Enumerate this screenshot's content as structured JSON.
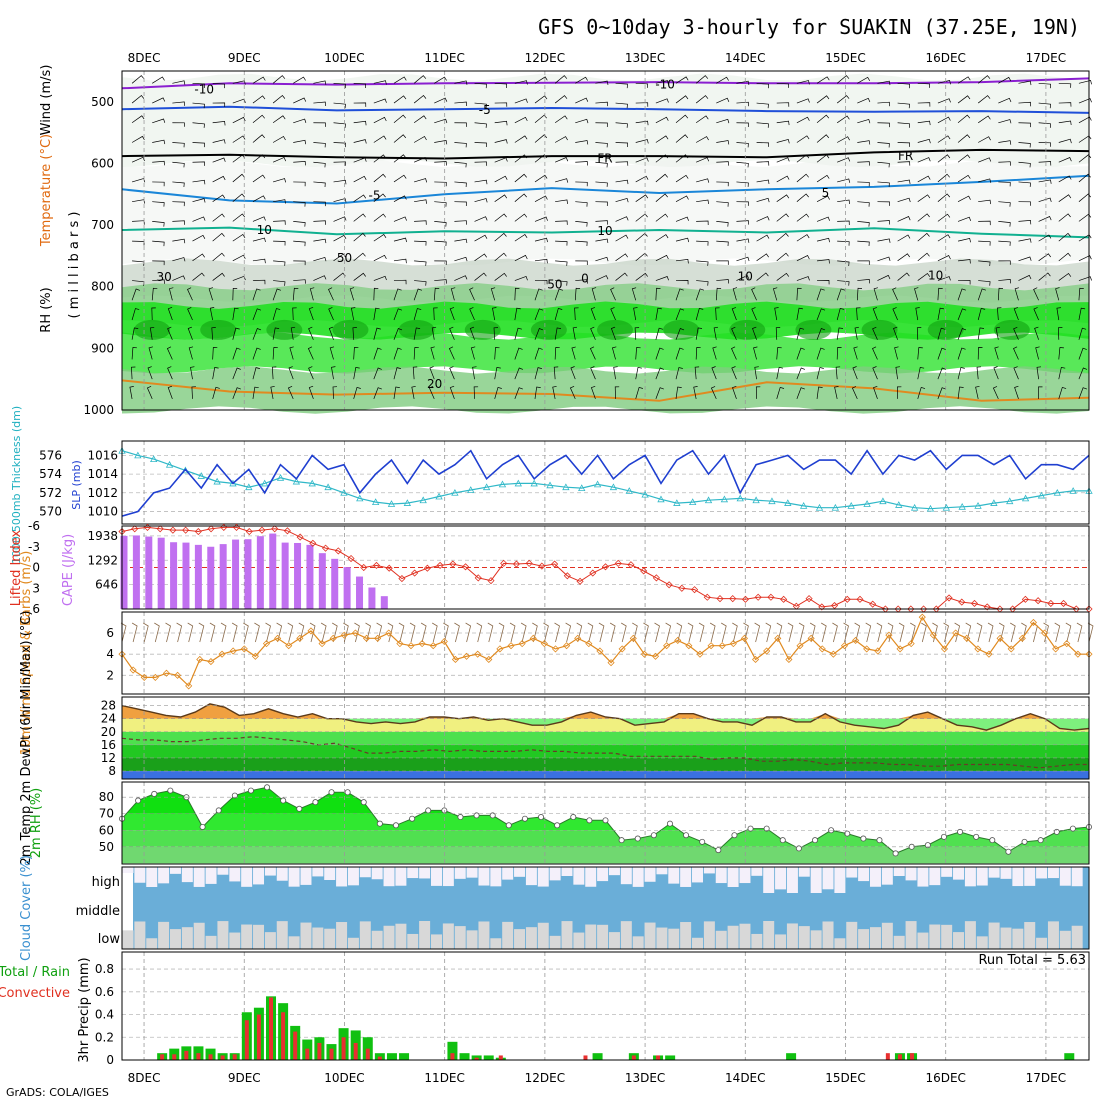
{
  "chart_data": {
    "type": "meteogram",
    "title": "GFS 0~10day 3-hourly for SUAKIN (37.25E, 19N)",
    "credit": "GrADS: COLA/IGES",
    "dates": [
      "8DEC",
      "9DEC",
      "10DEC",
      "11DEC",
      "12DEC",
      "13DEC",
      "14DEC",
      "15DEC",
      "16DEC",
      "17DEC"
    ],
    "t_start": -0.22,
    "t_end": 9.43,
    "upper": {
      "ylabel_wind": "Wind (m/s)",
      "ylabel_temp": "Temperature (°C)",
      "ylabel_rh": "RH (%)",
      "ylabel_units": "( m i l l i b a r s )",
      "pressure_ticks": [
        500,
        600,
        700,
        800,
        900,
        1000
      ],
      "ylim": [
        450,
        1000
      ],
      "contour_labels": [
        "-10",
        "-10",
        "-5",
        "FR",
        "FR",
        "-5",
        "5",
        "10",
        "10",
        "0",
        "20",
        "30",
        "50",
        "50",
        "10",
        "10"
      ],
      "isotherms": [
        {
          "label": "-10",
          "color": "#8a1fd0",
          "p": [
            478,
            470,
            472,
            470,
            469,
            468,
            470,
            470,
            468,
            462
          ]
        },
        {
          "label": "-5",
          "color": "#1f4fd8",
          "p": [
            512,
            508,
            514,
            512,
            510,
            512,
            515,
            516,
            515,
            518
          ]
        },
        {
          "label": "FR",
          "color": "#000000",
          "p": [
            588,
            586,
            590,
            592,
            588,
            588,
            590,
            582,
            578,
            580
          ]
        },
        {
          "label": "5",
          "color": "#1a86d8",
          "p": [
            642,
            660,
            665,
            650,
            640,
            648,
            642,
            638,
            630,
            620
          ]
        },
        {
          "label": "10",
          "color": "#10b090",
          "p": [
            708,
            704,
            715,
            710,
            712,
            708,
            712,
            705,
            714,
            720
          ]
        },
        {
          "label": "20",
          "color": "#e08a20",
          "p": [
            952,
            970,
            975,
            972,
            974,
            985,
            955,
            965,
            985,
            980
          ]
        }
      ]
    },
    "slp_thickness": {
      "ylabel_slp": "SLP (mb)",
      "ylabel_thick": "1000-500mb Thickness (dm)",
      "slp_ticks": [
        1010,
        1012,
        1014,
        1016
      ],
      "thick_ticks": [
        570,
        572,
        574,
        576
      ],
      "slp": [
        1009.5,
        1010,
        1012,
        1012.5,
        1014.5,
        1012.5,
        1015,
        1013,
        1014.5,
        1012,
        1015,
        1013.5,
        1016,
        1014.5,
        1015,
        1012,
        1014,
        1015.5,
        1013,
        1015.5,
        1014,
        1015,
        1016.5,
        1013.5,
        1015,
        1016,
        1013.5,
        1015,
        1016,
        1014,
        1016,
        1013.5,
        1015,
        1016,
        1013,
        1015.5,
        1016.5,
        1014,
        1016,
        1012,
        1015,
        1015.5,
        1016,
        1014.5,
        1015.5,
        1015.5,
        1014,
        1016.5,
        1014,
        1016,
        1015.5,
        1016.5,
        1014.5,
        1016,
        1016,
        1015,
        1016,
        1013.5,
        1015,
        1015,
        1014.5,
        1016
      ],
      "thickness": [
        576.5,
        576,
        575.6,
        575,
        574.4,
        573.8,
        573.2,
        573,
        572.6,
        573,
        573.6,
        573.2,
        573,
        572.6,
        572,
        571.4,
        571,
        570.8,
        570.9,
        571.2,
        571.6,
        572,
        572.3,
        572.6,
        572.9,
        573,
        573,
        572.8,
        572.6,
        572.5,
        572.9,
        572.6,
        572.2,
        571.8,
        571.3,
        570.9,
        571,
        571.2,
        571.3,
        571.4,
        571.2,
        571.1,
        570.9,
        570.6,
        570.4,
        570.4,
        570.6,
        570.8,
        571.1,
        570.7,
        570.4,
        570.3,
        570.4,
        570.5,
        570.6,
        570.9,
        571.1,
        571.4,
        571.7,
        572,
        572.2,
        572.2
      ]
    },
    "cape_li": {
      "ylabel_li": "Lifted Index",
      "ylabel_cape": "CAPE (J/kg)",
      "li_ticks": [
        "-6",
        "-3",
        "0",
        "3",
        "6"
      ],
      "cape_ticks": [
        "646",
        "1292",
        "1938"
      ],
      "cape": [
        1938,
        1950,
        1920,
        1890,
        1770,
        1760,
        1700,
        1650,
        1720,
        1840,
        1850,
        1930,
        2000,
        1760,
        1750,
        1700,
        1480,
        1330,
        1110,
        860,
        570,
        340
      ],
      "lifted_index": [
        -5.2,
        -5.6,
        -5.8,
        -5.6,
        -5.4,
        -5.4,
        -5.2,
        -5.6,
        -5.8,
        -5.8,
        -5.2,
        -5.4,
        -5.6,
        -5.3,
        -4.4,
        -3.5,
        -2.8,
        -2.4,
        -1.3,
        0,
        -0.3,
        0.1,
        1.6,
        0.8,
        0.1,
        -0.3,
        -0.5,
        -0.1,
        1.5,
        1.9,
        -0.6,
        -0.5,
        -0.6,
        -0.2,
        -0.5,
        1.2,
        2,
        0.8,
        -0.1,
        -0.6,
        -0.4,
        0.5,
        1.5,
        2.5,
        3,
        3.2,
        4.3,
        4.5,
        4.5,
        4.6,
        4.3,
        4.3,
        4.6,
        5.6,
        4.5,
        5.7,
        5.5,
        4.6,
        4.6,
        5.3,
        6,
        6,
        6,
        6,
        6,
        4.4,
        5,
        5.2,
        5.7,
        6,
        6,
        4.6,
        4.8,
        5.2,
        5.2,
        6,
        6
      ]
    },
    "wind10m": {
      "ylabel": "10m Wind Speed & Barbs (m/s)",
      "ticks": [
        "2",
        "4",
        "6"
      ],
      "speed": [
        4,
        2.5,
        1.8,
        1.8,
        2.2,
        2,
        1,
        3.5,
        3.3,
        4,
        4.3,
        4.5,
        3.8,
        5,
        5.5,
        4.8,
        5.5,
        6.2,
        5,
        5.5,
        5.8,
        6,
        5.5,
        5.5,
        6,
        5,
        4.8,
        5,
        4.8,
        5.2,
        3.5,
        3.8,
        4,
        3.5,
        4.5,
        4.8,
        5,
        5.5,
        5,
        4.5,
        4.8,
        5.5,
        5,
        4.3,
        3.2,
        4.5,
        5.5,
        4,
        3.8,
        4.8,
        5.3,
        4.8,
        4,
        4.8,
        4.8,
        5,
        5.5,
        3.5,
        4.3,
        5.5,
        3.5,
        4.8,
        5.5,
        4.5,
        4,
        4.8,
        5.3,
        4.5,
        4.3,
        5.8,
        4.5,
        5,
        7.5,
        5.8,
        4.5,
        6,
        5.5,
        4.5,
        4,
        5.5,
        4.5,
        5.5,
        7,
        6,
        4.5,
        5,
        4,
        4
      ]
    },
    "temp2m": {
      "ylabel": "2m Temp 2m DewPt (6hr Min/Max) (°C)",
      "ticks": [
        "8",
        "12",
        "16",
        "20",
        "24",
        "28"
      ],
      "temp": [
        28,
        27,
        26,
        25,
        24.5,
        26,
        28.5,
        27.5,
        25,
        25.5,
        27,
        25.5,
        24.5,
        25.5,
        24,
        24,
        23,
        22.5,
        23,
        22.5,
        23,
        24.5,
        24.5,
        24,
        24.5,
        23.5,
        24,
        23,
        22,
        22,
        23,
        25,
        26,
        24.5,
        24,
        22,
        22.5,
        23,
        25.5,
        25.5,
        24,
        23,
        23,
        22,
        24.5,
        24.5,
        23,
        23,
        25.5,
        23,
        22,
        21.5,
        21,
        22,
        25,
        26,
        24,
        22,
        21.5,
        20.5,
        22,
        24,
        25.5,
        24,
        21,
        20.5,
        21
      ],
      "dewpt": [
        18,
        17.5,
        17.5,
        17,
        17,
        17.5,
        18,
        18,
        18.5,
        18,
        17.5,
        17,
        16,
        16.5,
        15,
        13.5,
        13.5,
        14,
        14,
        14.5,
        14,
        14.5,
        14,
        14,
        14,
        14.5,
        14,
        14,
        13.5,
        13.5,
        13.5,
        12.5,
        12.5,
        12.5,
        12.5,
        12.5,
        11.5,
        12,
        12,
        11,
        11,
        11.5,
        11,
        10,
        10.5,
        10.5,
        10.5,
        10,
        10,
        9.5,
        9.5,
        10,
        10,
        10,
        10,
        9.5,
        9,
        9.5,
        10,
        10
      ]
    },
    "rh2m": {
      "ylabel": "2m RH (%)",
      "ticks": [
        "50",
        "60",
        "70",
        "80"
      ],
      "rh": [
        67,
        78,
        82,
        84,
        80,
        62,
        72,
        81,
        84,
        86,
        78,
        73,
        77,
        83,
        83,
        77,
        64,
        63,
        67,
        72,
        72,
        68,
        69,
        69,
        63,
        67,
        68,
        63,
        68,
        66,
        66,
        54,
        55,
        57,
        64,
        57,
        53,
        48,
        57,
        61,
        61,
        54,
        49,
        54,
        60,
        58,
        55,
        54,
        46,
        50,
        51,
        56,
        59,
        56,
        54,
        47,
        53,
        54,
        59,
        61,
        62
      ]
    },
    "cloud": {
      "ylabel": "Cloud Cover (%)",
      "levels": [
        "high",
        "middle",
        "low"
      ]
    },
    "precip": {
      "ylabel_total": "Total / Rain",
      "ylabel_conv": "Convective",
      "ylabel": "3hr Precip (mm)",
      "ticks": [
        "0",
        "0.2",
        "0.4",
        "0.6",
        "0.8"
      ],
      "run_total": "Run Total = 5.63",
      "total": [
        0,
        0.06,
        0.1,
        0.12,
        0.12,
        0.1,
        0.06,
        0.06,
        0.42,
        0.46,
        0.56,
        0.5,
        0.3,
        0.18,
        0.2,
        0.14,
        0.28,
        0.26,
        0.2,
        0.06,
        0.06,
        0.06,
        0,
        0,
        0,
        0.16,
        0.06,
        0.04,
        0.04,
        0.02,
        0,
        0,
        0,
        0,
        0,
        0,
        0,
        0.06,
        0,
        0,
        0.06,
        0,
        0.04,
        0.04,
        0,
        0,
        0,
        0,
        0,
        0,
        0,
        0,
        0,
        0.06,
        0,
        0,
        0,
        0,
        0,
        0,
        0,
        0,
        0.06,
        0.06,
        0,
        0,
        0,
        0,
        0,
        0,
        0,
        0,
        0,
        0,
        0,
        0,
        0.06,
        0,
        0,
        0,
        0
      ],
      "conv": [
        0,
        0.05,
        0.05,
        0.08,
        0.06,
        0.05,
        0.04,
        0.05,
        0.35,
        0.4,
        0.55,
        0.42,
        0.25,
        0.1,
        0.15,
        0.1,
        0.2,
        0.15,
        0.1,
        0.03,
        0,
        0,
        0,
        0,
        0,
        0.06,
        0,
        0.02,
        0,
        0.04,
        0,
        0,
        0,
        0,
        0,
        0,
        0.04,
        0,
        0,
        0,
        0.04,
        0,
        0.04,
        0,
        0,
        0,
        0,
        0,
        0,
        0,
        0,
        0,
        0,
        0,
        0,
        0,
        0,
        0,
        0,
        0,
        0,
        0.06,
        0.05,
        0.06,
        0,
        0,
        0,
        0,
        0,
        0,
        0,
        0,
        0,
        0,
        0,
        0,
        0,
        0,
        0,
        0,
        0
      ]
    }
  }
}
